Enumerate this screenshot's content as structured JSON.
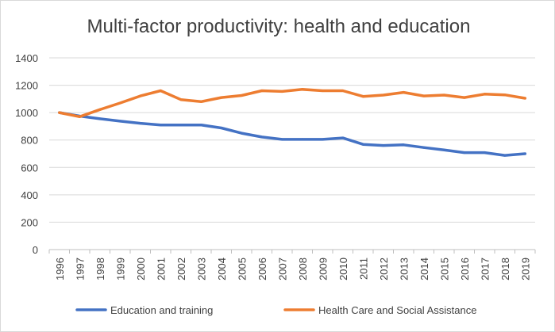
{
  "chart_data": {
    "type": "line",
    "title": "Multi-factor productivity: health and education",
    "xlabel": "",
    "ylabel": "",
    "x": [
      "1996",
      "1997",
      "1998",
      "1999",
      "2000",
      "2001",
      "2002",
      "2003",
      "2004",
      "2005",
      "2006",
      "2007",
      "2008",
      "2009",
      "2010",
      "2011",
      "2012",
      "2013",
      "2014",
      "2015",
      "2016",
      "2017",
      "2018",
      "2019"
    ],
    "ylim": [
      0,
      1400
    ],
    "yticks": [
      0,
      200,
      400,
      600,
      800,
      1000,
      1200,
      1400
    ],
    "grid": true,
    "legend_position": "bottom",
    "series": [
      {
        "name": "Education and training",
        "color": "#4472c4",
        "values": [
          1000,
          975,
          955,
          938,
          922,
          910,
          910,
          910,
          888,
          850,
          822,
          805,
          805,
          805,
          815,
          768,
          760,
          765,
          745,
          728,
          708,
          708,
          688,
          700
        ]
      },
      {
        "name": "Health Care and Social Assistance",
        "color": "#ed7d31",
        "values": [
          1000,
          970,
          1022,
          1070,
          1122,
          1160,
          1095,
          1080,
          1110,
          1125,
          1160,
          1155,
          1170,
          1160,
          1160,
          1118,
          1128,
          1148,
          1122,
          1128,
          1110,
          1135,
          1130,
          1105
        ]
      }
    ]
  }
}
